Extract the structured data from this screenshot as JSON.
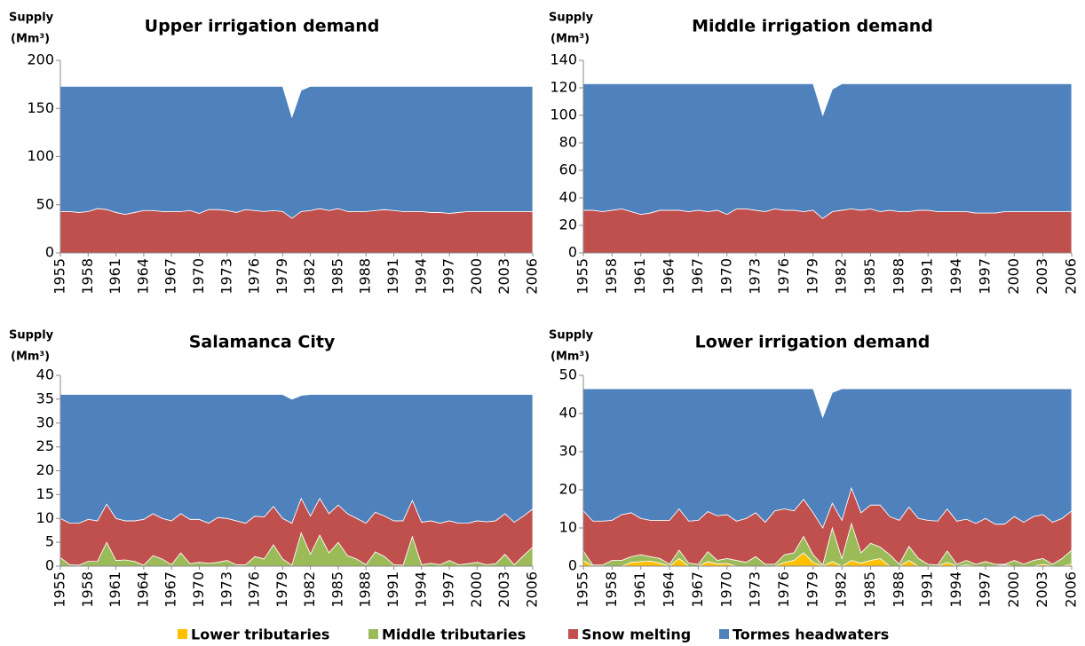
{
  "chart_data": [
    {
      "type": "area",
      "title": "Upper irrigation demand",
      "ylabel": [
        "Supply",
        "(Mm³)"
      ],
      "x": [
        1955,
        1956,
        1957,
        1958,
        1959,
        1960,
        1961,
        1962,
        1963,
        1964,
        1965,
        1966,
        1967,
        1968,
        1969,
        1970,
        1971,
        1972,
        1973,
        1974,
        1975,
        1976,
        1977,
        1978,
        1979,
        1980,
        1981,
        1982,
        1983,
        1984,
        1985,
        1986,
        1987,
        1988,
        1989,
        1990,
        1991,
        1992,
        1993,
        1994,
        1995,
        1996,
        1997,
        1998,
        1999,
        2000,
        2001,
        2002,
        2003,
        2004,
        2005,
        2006
      ],
      "xlim": [
        1955,
        2006
      ],
      "xticks": [
        1955,
        1958,
        1961,
        1964,
        1967,
        1970,
        1973,
        1976,
        1979,
        1982,
        1985,
        1988,
        1991,
        1994,
        1997,
        2000,
        2003,
        2006
      ],
      "ylim": [
        0,
        200
      ],
      "yticks": [
        0,
        50,
        100,
        150,
        200
      ],
      "series": [
        {
          "color": "#C0504D",
          "values": [
            43,
            43,
            42,
            43,
            46,
            45,
            42,
            40,
            42,
            44,
            44,
            43,
            43,
            43,
            44,
            41,
            45,
            45,
            44,
            42,
            45,
            44,
            43,
            44,
            43,
            36,
            43,
            44,
            46,
            44,
            46,
            43,
            43,
            43,
            44,
            45,
            44,
            43,
            43,
            43,
            42,
            42,
            41,
            42,
            43,
            43,
            43,
            43,
            43,
            43,
            43,
            43
          ]
        },
        {
          "color": "#4F81BD",
          "values": [
            130,
            130,
            131,
            130,
            127,
            128,
            131,
            133,
            131,
            129,
            129,
            130,
            130,
            130,
            129,
            132,
            128,
            128,
            129,
            131,
            128,
            129,
            130,
            129,
            130,
            105,
            126,
            129,
            127,
            129,
            127,
            130,
            130,
            130,
            129,
            128,
            129,
            130,
            130,
            130,
            131,
            131,
            132,
            131,
            130,
            130,
            130,
            130,
            130,
            130,
            130,
            130
          ]
        }
      ]
    },
    {
      "type": "area",
      "title": "Middle irrigation demand",
      "ylabel": [
        "Supply",
        "(Mm³)"
      ],
      "x": [
        1955,
        1956,
        1957,
        1958,
        1959,
        1960,
        1961,
        1962,
        1963,
        1964,
        1965,
        1966,
        1967,
        1968,
        1969,
        1970,
        1971,
        1972,
        1973,
        1974,
        1975,
        1976,
        1977,
        1978,
        1979,
        1980,
        1981,
        1982,
        1983,
        1984,
        1985,
        1986,
        1987,
        1988,
        1989,
        1990,
        1991,
        1992,
        1993,
        1994,
        1995,
        1996,
        1997,
        1998,
        1999,
        2000,
        2001,
        2002,
        2003,
        2004,
        2005,
        2006
      ],
      "xlim": [
        1955,
        2006
      ],
      "xticks": [
        1955,
        1958,
        1961,
        1964,
        1967,
        1970,
        1973,
        1976,
        1979,
        1982,
        1985,
        1988,
        1991,
        1994,
        1997,
        2000,
        2003,
        2006
      ],
      "ylim": [
        0,
        140
      ],
      "yticks": [
        0,
        20,
        40,
        60,
        80,
        100,
        120,
        140
      ],
      "series": [
        {
          "color": "#C0504D",
          "values": [
            31,
            31,
            30,
            31,
            32,
            30,
            28,
            29,
            31,
            31,
            31,
            30,
            31,
            30,
            31,
            28,
            32,
            32,
            31,
            30,
            32,
            31,
            31,
            30,
            31,
            25,
            30,
            31,
            32,
            31,
            32,
            30,
            31,
            30,
            30,
            31,
            31,
            30,
            30,
            30,
            30,
            29,
            29,
            29,
            30,
            30,
            30,
            30,
            30,
            30,
            30,
            30
          ]
        },
        {
          "color": "#4F81BD",
          "values": [
            92,
            92,
            93,
            92,
            91,
            93,
            95,
            94,
            92,
            92,
            92,
            93,
            92,
            93,
            92,
            95,
            91,
            91,
            92,
            93,
            91,
            92,
            92,
            93,
            92,
            75,
            89,
            92,
            91,
            92,
            91,
            93,
            92,
            93,
            93,
            92,
            92,
            93,
            93,
            93,
            93,
            94,
            94,
            94,
            93,
            93,
            93,
            93,
            93,
            93,
            93,
            93
          ]
        }
      ]
    },
    {
      "type": "area",
      "title": "Salamanca City",
      "ylabel": [
        "Supply",
        "(Mm³)"
      ],
      "x": [
        1955,
        1956,
        1957,
        1958,
        1959,
        1960,
        1961,
        1962,
        1963,
        1964,
        1965,
        1966,
        1967,
        1968,
        1969,
        1970,
        1971,
        1972,
        1973,
        1974,
        1975,
        1976,
        1977,
        1978,
        1979,
        1980,
        1981,
        1982,
        1983,
        1984,
        1985,
        1986,
        1987,
        1988,
        1989,
        1990,
        1991,
        1992,
        1993,
        1994,
        1995,
        1996,
        1997,
        1998,
        1999,
        2000,
        2001,
        2002,
        2003,
        2004,
        2005,
        2006
      ],
      "xlim": [
        1955,
        2006
      ],
      "xticks": [
        1955,
        1958,
        1961,
        1964,
        1967,
        1970,
        1973,
        1976,
        1979,
        1982,
        1985,
        1988,
        1991,
        1994,
        1997,
        2000,
        2003,
        2006
      ],
      "ylim": [
        0,
        40
      ],
      "yticks": [
        0,
        5,
        10,
        15,
        20,
        25,
        30,
        35,
        40
      ],
      "series": [
        {
          "color": "#9BBB59",
          "values": [
            1.8,
            0.3,
            0.2,
            1,
            1,
            5,
            1.2,
            1.3,
            1,
            0.2,
            2.2,
            1.5,
            0.3,
            2.8,
            0.5,
            0.8,
            0.6,
            0.8,
            1.2,
            0.3,
            0.3,
            2,
            1.5,
            4.5,
            1.5,
            0.2,
            7,
            2.5,
            6.5,
            2.8,
            5,
            2.2,
            1.5,
            0.3,
            3,
            2,
            0.3,
            0.2,
            6.2,
            0.3,
            0.6,
            0.3,
            1.2,
            0.3,
            0.5,
            0.8,
            0.3,
            0.5,
            2.5,
            0.3,
            2.2,
            4
          ]
        },
        {
          "color": "#C0504D",
          "values": [
            8.2,
            8.7,
            8.8,
            8.8,
            8.5,
            8,
            8.8,
            8.2,
            8.5,
            9.6,
            8.8,
            8.5,
            9.2,
            8.2,
            9.3,
            9,
            8.4,
            9.4,
            8.8,
            9.2,
            8.7,
            8.5,
            8.8,
            8,
            8.5,
            8.8,
            7.2,
            8,
            7.7,
            8.2,
            7.8,
            8.8,
            8.5,
            8.7,
            8.3,
            8.5,
            9.2,
            9.3,
            7.6,
            8.9,
            8.9,
            8.7,
            8.3,
            8.7,
            8.5,
            8.7,
            9,
            9,
            8.5,
            8.9,
            8.3,
            8
          ]
        },
        {
          "color": "#4F81BD",
          "values": [
            26,
            27,
            27,
            26.2,
            26.5,
            23,
            26,
            26.5,
            26.5,
            26.2,
            25,
            26,
            26.5,
            25,
            26.2,
            26.2,
            27,
            25.8,
            26,
            26.5,
            27,
            25.5,
            25.7,
            23.5,
            26,
            26,
            21.6,
            25.5,
            21.8,
            25,
            23.2,
            25,
            26,
            27,
            24.7,
            25.5,
            26.5,
            26.5,
            22.2,
            26.8,
            26.5,
            27,
            26.5,
            27,
            27,
            26.5,
            26.7,
            26.5,
            25,
            26.8,
            25.5,
            24
          ]
        }
      ]
    },
    {
      "type": "area",
      "title": "Lower irrigation demand",
      "ylabel": [
        "Supply",
        "(Mm³)"
      ],
      "x": [
        1955,
        1956,
        1957,
        1958,
        1959,
        1960,
        1961,
        1962,
        1963,
        1964,
        1965,
        1966,
        1967,
        1968,
        1969,
        1970,
        1971,
        1972,
        1973,
        1974,
        1975,
        1976,
        1977,
        1978,
        1979,
        1980,
        1981,
        1982,
        1983,
        1984,
        1985,
        1986,
        1987,
        1988,
        1989,
        1990,
        1991,
        1992,
        1993,
        1994,
        1995,
        1996,
        1997,
        1998,
        1999,
        2000,
        2001,
        2002,
        2003,
        2004,
        2005,
        2006
      ],
      "xlim": [
        1955,
        2006
      ],
      "xticks": [
        1955,
        1958,
        1961,
        1964,
        1967,
        1970,
        1973,
        1976,
        1979,
        1982,
        1985,
        1988,
        1991,
        1994,
        1997,
        2000,
        2003,
        2006
      ],
      "ylim": [
        0,
        50
      ],
      "yticks": [
        0,
        10,
        20,
        30,
        40,
        50
      ],
      "series": [
        {
          "name": "Lower tributaries",
          "color": "#FFC000",
          "values": [
            1.5,
            0,
            0,
            0,
            0,
            1,
            1.2,
            1.3,
            0.8,
            0,
            2,
            0,
            0,
            1.2,
            0.6,
            0.7,
            0,
            0,
            0,
            0,
            0,
            1,
            1.5,
            3.5,
            1,
            0,
            1.2,
            0,
            1.5,
            0.8,
            1.5,
            2,
            0,
            0,
            1.5,
            0,
            0,
            0,
            1,
            0,
            0.3,
            0,
            0,
            0,
            0.3,
            0,
            0,
            0,
            0.5,
            0,
            0,
            0.5
          ]
        },
        {
          "name": "Middle tributaries",
          "color": "#9BBB59",
          "values": [
            2.5,
            0.3,
            0.3,
            1.5,
            1.5,
            1.5,
            1.8,
            1.2,
            1.2,
            0.5,
            2.2,
            0.8,
            0.5,
            2.6,
            0.9,
            1.3,
            1.5,
            1,
            2.5,
            0.5,
            0.5,
            2,
            2,
            4.3,
            2,
            0.3,
            8.8,
            2,
            9.7,
            2.7,
            4.5,
            3,
            3,
            0.5,
            3.7,
            2,
            0.5,
            0.3,
            3,
            0.5,
            1.2,
            0.5,
            1.2,
            0.5,
            0.2,
            1.5,
            0.5,
            1.5,
            1.5,
            0.5,
            2,
            3.7
          ]
        },
        {
          "name": "Snow melting",
          "color": "#C0504D",
          "values": [
            10.5,
            11.5,
            11.5,
            10.5,
            12,
            11.5,
            9.5,
            9.5,
            10,
            11.5,
            10.8,
            11,
            11.5,
            10.5,
            11.7,
            11.5,
            10.3,
            11.5,
            11.5,
            11,
            14,
            12,
            11,
            9.7,
            11,
            9.7,
            6.5,
            10,
            9.3,
            10.5,
            10,
            11,
            10,
            11.5,
            10.3,
            10.5,
            11.5,
            11.5,
            11,
            11.3,
            10.8,
            10.7,
            11.3,
            10.5,
            10.5,
            11.5,
            11,
            11.5,
            11.5,
            11,
            10.5,
            10.3
          ]
        },
        {
          "name": "Tormes headwaters",
          "color": "#4F81BD",
          "values": [
            32,
            34.7,
            34.7,
            34.5,
            33,
            32.5,
            34,
            34.5,
            34.5,
            34.5,
            31.5,
            34.7,
            34.5,
            32.2,
            33.3,
            33,
            34.7,
            34,
            32.5,
            35,
            32,
            31.5,
            32,
            29,
            32.5,
            29,
            29,
            34.5,
            26,
            32.5,
            30.5,
            30.5,
            33.5,
            34.5,
            31,
            34,
            34.5,
            34.7,
            31.5,
            34.7,
            34.2,
            35.3,
            34,
            35.5,
            35.5,
            33.5,
            35,
            33.5,
            33,
            35,
            34,
            32
          ]
        }
      ]
    }
  ]
}
